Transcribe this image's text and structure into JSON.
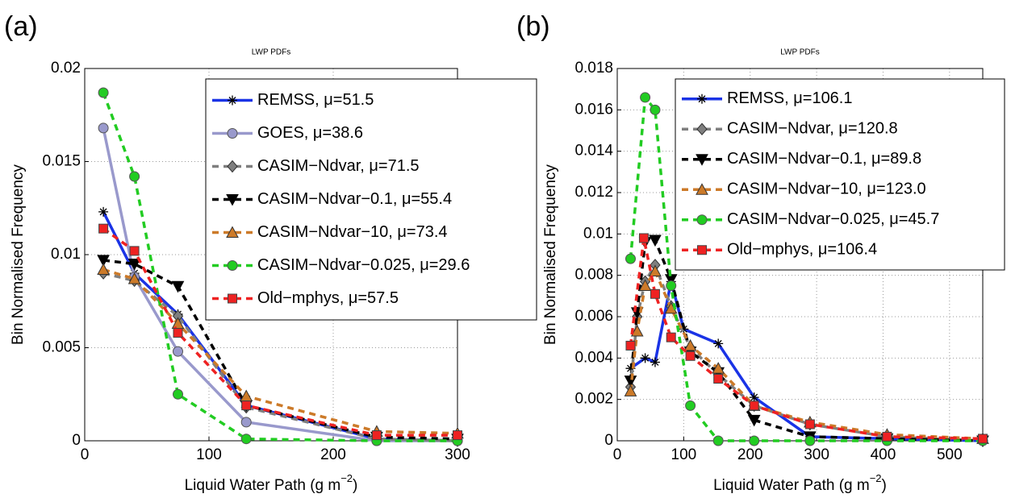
{
  "chart_data": [
    {
      "type": "line",
      "panel_label": "(a)",
      "title": "LWP PDFs",
      "xlabel_parts": [
        "Liquid Water Path (g m",
        "−2",
        ")"
      ],
      "ylabel": "Bin Normalised Frequency",
      "xlim": [
        0,
        300
      ],
      "xticks": [
        0,
        100,
        200,
        300
      ],
      "ylim": [
        0,
        0.02
      ],
      "yticks": [
        0,
        0.005,
        0.01,
        0.015,
        0.02
      ],
      "grid": true,
      "legend": "upper right",
      "x": [
        15,
        40,
        75,
        130,
        235,
        300
      ],
      "series": [
        {
          "name": "REMSS, μ=51.5",
          "color": "#1a33e6",
          "marker": "star",
          "dash": false,
          "values": [
            0.0123,
            0.009,
            0.0068,
            0.0019,
            0.0001,
            0
          ]
        },
        {
          "name": "GOES, μ=38.6",
          "color": "#9999cc",
          "marker": "circle",
          "dash": false,
          "values": [
            0.0168,
            0.0088,
            0.0048,
            0.001,
            0,
            0
          ]
        },
        {
          "name": "CASIM−Ndvar, μ=71.5",
          "color": "#7f7f7f",
          "marker": "diamond",
          "dash": true,
          "values": [
            0.009,
            0.0086,
            0.0067,
            0.0018,
            0.0001,
            0
          ]
        },
        {
          "name": "CASIM−Ndvar−0.1, μ=55.4",
          "color": "#000000",
          "marker": "tri-down",
          "dash": true,
          "values": [
            0.0097,
            0.0095,
            0.0083,
            0.0019,
            0.0002,
            0.0001
          ]
        },
        {
          "name": "CASIM−Ndvar−10, μ=73.4",
          "color": "#cc7a29",
          "marker": "tri-up",
          "dash": true,
          "values": [
            0.0092,
            0.0087,
            0.0063,
            0.0024,
            0.0005,
            0.0004
          ]
        },
        {
          "name": "CASIM−Ndvar−0.025, μ=29.6",
          "color": "#22cc22",
          "marker": "circle",
          "dash": true,
          "values": [
            0.0187,
            0.0142,
            0.0025,
            0.0001,
            0,
            0
          ]
        },
        {
          "name": "Old−mphys, μ=57.5",
          "color": "#ee2222",
          "marker": "square",
          "dash": true,
          "values": [
            0.0114,
            0.0102,
            0.0058,
            0.0019,
            0.0003,
            0.0003
          ]
        }
      ]
    },
    {
      "type": "line",
      "panel_label": "(b)",
      "title": "LWP PDFs",
      "xlabel_parts": [
        "Liquid Water Path (g m",
        "−2",
        ")"
      ],
      "ylabel": "Bin Normalised Frequency",
      "xlim": [
        0,
        550
      ],
      "xticks": [
        0,
        100,
        200,
        300,
        400,
        500
      ],
      "ylim": [
        0,
        0.018
      ],
      "yticks": [
        0,
        0.002,
        0.004,
        0.006,
        0.008,
        0.01,
        0.012,
        0.014,
        0.016,
        0.018
      ],
      "grid": true,
      "legend": "upper right",
      "series": [
        {
          "name": "REMSS, μ=106.1",
          "color": "#1a33e6",
          "marker": "star",
          "dash": false,
          "x": [
            20,
            42,
            57,
            81,
            100,
            152,
            206,
            290,
            406,
            550
          ],
          "values": [
            0.0035,
            0.004,
            0.0038,
            0.0077,
            0.0054,
            0.0047,
            0.0021,
            0.0002,
            0.0001,
            0
          ]
        },
        {
          "name": "CASIM−Ndvar, μ=120.8",
          "color": "#7f7f7f",
          "marker": "diamond",
          "dash": true,
          "x": [
            20,
            30,
            42,
            57,
            81,
            110,
            152,
            206,
            290,
            406,
            550
          ],
          "values": [
            0.0026,
            0.006,
            0.0077,
            0.0085,
            0.0065,
            0.0045,
            0.0032,
            0.0017,
            0.0008,
            0.0002,
            0
          ]
        },
        {
          "name": "CASIM−Ndvar−0.1, μ=89.8",
          "color": "#000000",
          "marker": "tri-down",
          "dash": true,
          "x": [
            20,
            30,
            42,
            57,
            81,
            110,
            152,
            206,
            290,
            406,
            550
          ],
          "values": [
            0.0029,
            0.0062,
            0.0096,
            0.0097,
            0.0078,
            0.0043,
            0.0033,
            0.001,
            0.0002,
            0.0001,
            0
          ]
        },
        {
          "name": "CASIM−Ndvar−10, μ=123.0",
          "color": "#cc7a29",
          "marker": "tri-up",
          "dash": true,
          "x": [
            20,
            30,
            42,
            57,
            81,
            110,
            152,
            206,
            290,
            406,
            550
          ],
          "values": [
            0.0024,
            0.0053,
            0.0075,
            0.0082,
            0.0064,
            0.0046,
            0.0035,
            0.0017,
            0.0009,
            0.0003,
            0.0001
          ]
        },
        {
          "name": "CASIM−Ndvar−0.025, μ=45.7",
          "color": "#22cc22",
          "marker": "circle",
          "dash": true,
          "x": [
            20,
            42,
            57,
            81,
            110,
            152,
            206,
            290,
            406,
            550
          ],
          "values": [
            0.0088,
            0.0166,
            0.016,
            0.0075,
            0.0017,
            0,
            0,
            0,
            0,
            0
          ]
        },
        {
          "name": "Old−mphys, μ=106.4",
          "color": "#ee2222",
          "marker": "square",
          "dash": true,
          "x": [
            20,
            40,
            57,
            81,
            110,
            152,
            206,
            290,
            406,
            550
          ],
          "values": [
            0.0046,
            0.0098,
            0.0071,
            0.005,
            0.0041,
            0.003,
            0.0017,
            0.0008,
            0.0002,
            0.0001
          ]
        }
      ]
    }
  ]
}
